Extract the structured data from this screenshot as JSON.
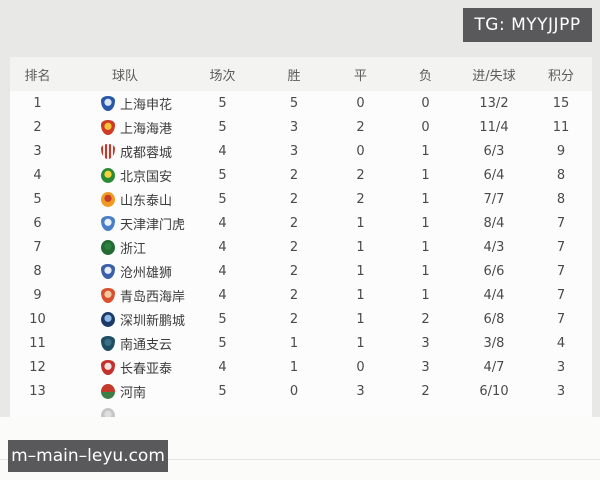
{
  "overlays": {
    "tg_badge": "TG: MYYJJPP",
    "watermark": "m–main–leyu.com"
  },
  "colors": {
    "badge_bg": "#59595b",
    "badge_text": "#ffffff",
    "header_bg": "#f3f3f1",
    "panel_bg": "#fcfcfc",
    "page_bg": "#e8e8e7",
    "text": "#4a4a4a"
  },
  "table": {
    "columns": [
      "排名",
      "球队",
      "场次",
      "胜",
      "平",
      "负",
      "进/失球",
      "积分"
    ],
    "rows": [
      {
        "rank": "1",
        "team": "上海申花",
        "played": "5",
        "win": "5",
        "draw": "0",
        "loss": "0",
        "goals": "13/2",
        "points": "15",
        "logo": {
          "shape": "shield",
          "fill": "radial",
          "colors": [
            "#2a57a7",
            "#d9e6f7"
          ]
        }
      },
      {
        "rank": "2",
        "team": "上海海港",
        "played": "5",
        "win": "3",
        "draw": "2",
        "loss": "0",
        "goals": "11/4",
        "points": "11",
        "logo": {
          "shape": "shield",
          "fill": "radial",
          "colors": [
            "#cf3b27",
            "#f2c53c"
          ]
        }
      },
      {
        "rank": "3",
        "team": "成都蓉城",
        "played": "4",
        "win": "3",
        "draw": "0",
        "loss": "1",
        "goals": "6/3",
        "points": "9",
        "logo": {
          "shape": "shield",
          "fill": "stripes",
          "colors": [
            "#c0392b",
            "#f5f0ee"
          ]
        }
      },
      {
        "rank": "4",
        "team": "北京国安",
        "played": "5",
        "win": "2",
        "draw": "2",
        "loss": "1",
        "goals": "6/4",
        "points": "8",
        "logo": {
          "shape": "circle",
          "fill": "radial",
          "colors": [
            "#2c8a35",
            "#f2d43c"
          ]
        }
      },
      {
        "rank": "5",
        "team": "山东泰山",
        "played": "5",
        "win": "2",
        "draw": "2",
        "loss": "1",
        "goals": "7/7",
        "points": "8",
        "logo": {
          "shape": "circle",
          "fill": "radial",
          "colors": [
            "#f09a24",
            "#c43c2a"
          ]
        }
      },
      {
        "rank": "6",
        "team": "天津津门虎",
        "played": "4",
        "win": "2",
        "draw": "1",
        "loss": "1",
        "goals": "8/4",
        "points": "7",
        "logo": {
          "shape": "shield",
          "fill": "radial",
          "colors": [
            "#4a7ec7",
            "#e8f0fa"
          ]
        }
      },
      {
        "rank": "7",
        "team": "浙江",
        "played": "4",
        "win": "2",
        "draw": "1",
        "loss": "1",
        "goals": "4/3",
        "points": "7",
        "logo": {
          "shape": "circle",
          "fill": "radial",
          "colors": [
            "#236b33",
            "#2f8043"
          ]
        }
      },
      {
        "rank": "8",
        "team": "沧州雄狮",
        "played": "4",
        "win": "2",
        "draw": "1",
        "loss": "1",
        "goals": "6/6",
        "points": "7",
        "logo": {
          "shape": "shield",
          "fill": "radial",
          "colors": [
            "#3b5fa8",
            "#e6edf8"
          ]
        }
      },
      {
        "rank": "9",
        "team": "青岛西海岸",
        "played": "4",
        "win": "2",
        "draw": "1",
        "loss": "1",
        "goals": "4/4",
        "points": "7",
        "logo": {
          "shape": "shield",
          "fill": "radial",
          "colors": [
            "#d8502e",
            "#f5c89e"
          ]
        }
      },
      {
        "rank": "10",
        "team": "深圳新鹏城",
        "played": "5",
        "win": "2",
        "draw": "1",
        "loss": "2",
        "goals": "6/8",
        "points": "7",
        "logo": {
          "shape": "circle",
          "fill": "radial",
          "colors": [
            "#1c3a69",
            "#8fb8e6"
          ]
        }
      },
      {
        "rank": "11",
        "team": "南通支云",
        "played": "5",
        "win": "1",
        "draw": "1",
        "loss": "3",
        "goals": "3/8",
        "points": "4",
        "logo": {
          "shape": "shield",
          "fill": "radial",
          "colors": [
            "#1f4e63",
            "#3c6f86"
          ]
        }
      },
      {
        "rank": "12",
        "team": "长春亚泰",
        "played": "4",
        "win": "1",
        "draw": "0",
        "loss": "3",
        "goals": "4/7",
        "points": "3",
        "logo": {
          "shape": "shield",
          "fill": "radial",
          "colors": [
            "#c4302b",
            "#f0e3e0"
          ]
        }
      },
      {
        "rank": "13",
        "team": "河南",
        "played": "5",
        "win": "0",
        "draw": "3",
        "loss": "2",
        "goals": "6/10",
        "points": "3",
        "logo": {
          "shape": "circle",
          "fill": "split",
          "colors": [
            "#c23b2a",
            "#3d7d46"
          ]
        }
      },
      {
        "rank": "",
        "team": "",
        "played": "",
        "win": "",
        "draw": "",
        "loss": "",
        "goals": "",
        "points": "",
        "logo": {
          "shape": "circle",
          "fill": "radial",
          "colors": [
            "#c6c6c6",
            "#dedede"
          ]
        }
      }
    ]
  }
}
